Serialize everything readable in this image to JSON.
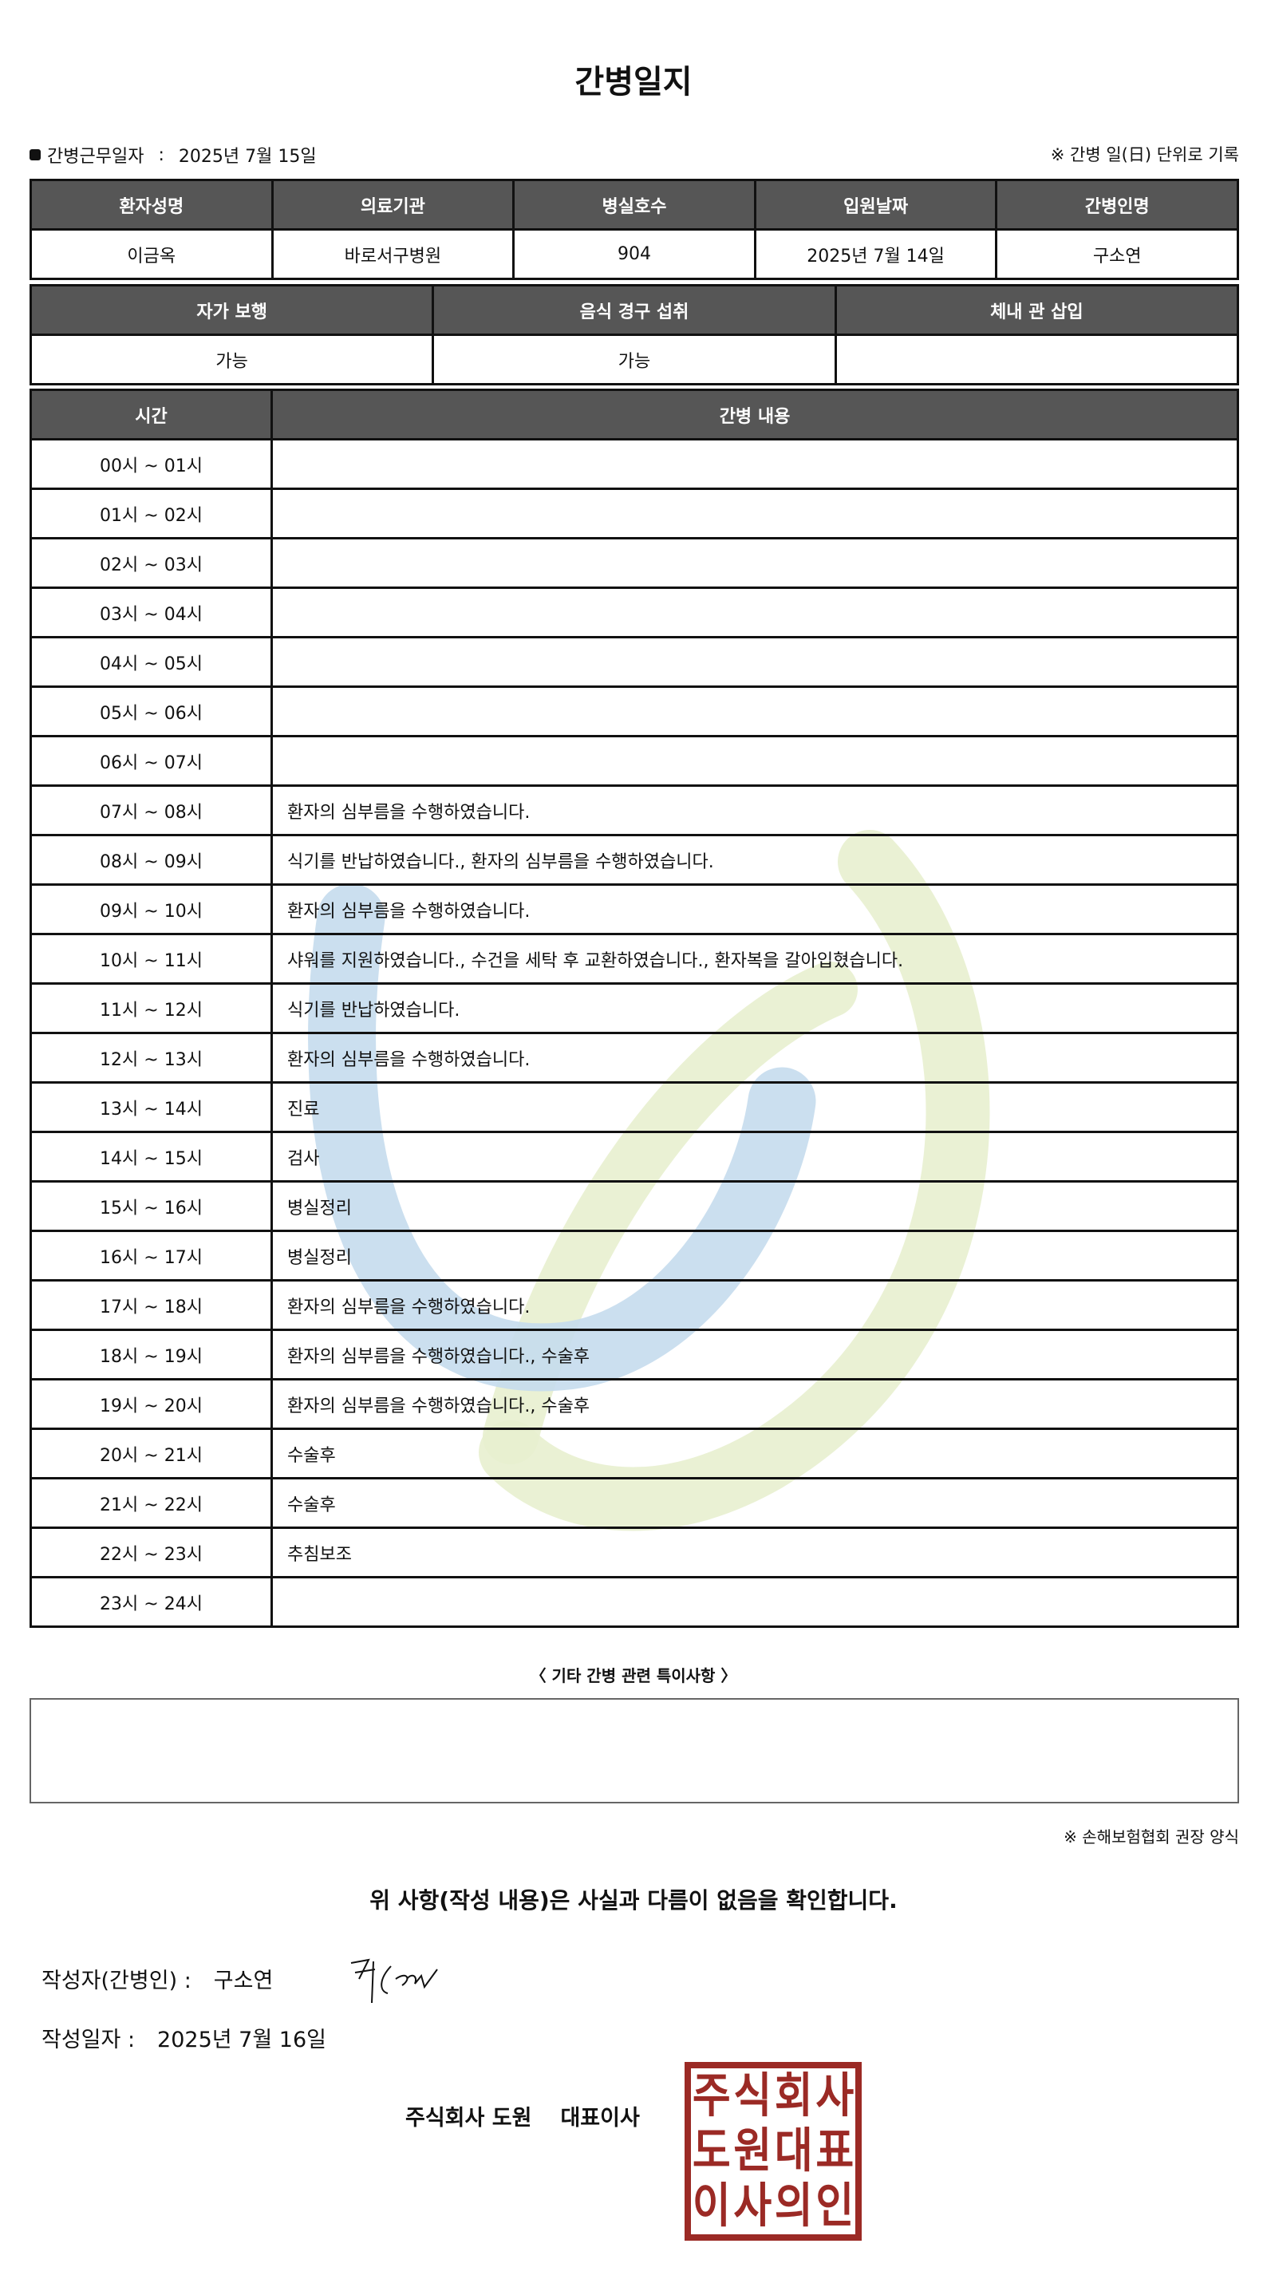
{
  "title": "간병일지",
  "work_date": {
    "label": "간병근무일자",
    "separator": ":",
    "value": "2025년 7월 15일"
  },
  "unit_note": "※ 간병 일(日) 단위로 기록",
  "info_table": {
    "headers": [
      "환자성명",
      "의료기관",
      "병실호수",
      "입원날짜",
      "간병인명"
    ],
    "values": [
      "이금옥",
      "바로서구병원",
      "904",
      "2025년 7월 14일",
      "구소연"
    ]
  },
  "status_table": {
    "headers": [
      "자가 보행",
      "음식 경구 섭취",
      "체내 관 삽입"
    ],
    "values": [
      "가능",
      "가능",
      ""
    ]
  },
  "log_table": {
    "headers": [
      "시간",
      "간병 내용"
    ],
    "rows": [
      {
        "time": "00시 ~ 01시",
        "content": ""
      },
      {
        "time": "01시 ~ 02시",
        "content": ""
      },
      {
        "time": "02시 ~ 03시",
        "content": ""
      },
      {
        "time": "03시 ~ 04시",
        "content": ""
      },
      {
        "time": "04시 ~ 05시",
        "content": ""
      },
      {
        "time": "05시 ~ 06시",
        "content": ""
      },
      {
        "time": "06시 ~ 07시",
        "content": ""
      },
      {
        "time": "07시 ~ 08시",
        "content": "환자의 심부름을 수행하였습니다."
      },
      {
        "time": "08시 ~ 09시",
        "content": "식기를 반납하였습니다., 환자의 심부름을 수행하였습니다."
      },
      {
        "time": "09시 ~ 10시",
        "content": "환자의 심부름을 수행하였습니다."
      },
      {
        "time": "10시 ~ 11시",
        "content": "샤워를 지원하였습니다., 수건을 세탁 후 교환하였습니다., 환자복을 갈아입혔습니다."
      },
      {
        "time": "11시 ~ 12시",
        "content": "식기를 반납하였습니다."
      },
      {
        "time": "12시 ~ 13시",
        "content": "환자의 심부름을 수행하였습니다."
      },
      {
        "time": "13시 ~ 14시",
        "content": "진료"
      },
      {
        "time": "14시 ~ 15시",
        "content": "검사"
      },
      {
        "time": "15시 ~ 16시",
        "content": "병실정리"
      },
      {
        "time": "16시 ~ 17시",
        "content": "병실정리"
      },
      {
        "time": "17시 ~ 18시",
        "content": "환자의 심부름을 수행하였습니다."
      },
      {
        "time": "18시 ~ 19시",
        "content": "환자의 심부름을 수행하였습니다., 수술후"
      },
      {
        "time": "19시 ~ 20시",
        "content": "환자의 심부름을 수행하였습니다., 수술후"
      },
      {
        "time": "20시 ~ 21시",
        "content": "수술후"
      },
      {
        "time": "21시 ~ 22시",
        "content": "수술후"
      },
      {
        "time": "22시 ~ 23시",
        "content": "추침보조"
      },
      {
        "time": "23시 ~ 24시",
        "content": ""
      }
    ]
  },
  "special_notes": {
    "label": "〈 기타 간병 관련 특이사항 〉",
    "value": ""
  },
  "form_note": "※ 손해보험협회 권장 양식",
  "confirmation": "위 사항(작성 내용)은 사실과 다름이 없음을 확인합니다.",
  "writer": {
    "label": "작성자(간병인) :",
    "value": "구소연"
  },
  "written_date": {
    "label": "작성일자 :",
    "value": "2025년 7월 16일"
  },
  "company": {
    "name": "주식회사 도원",
    "title": "대표이사"
  },
  "stamp": {
    "text": [
      "주",
      "식",
      "회",
      "사",
      "도",
      "원",
      "대",
      "표",
      "이",
      "사",
      "의",
      "인"
    ],
    "color": "#9b2a25"
  },
  "colors": {
    "header_bg": "#565656",
    "watermark_blue": "#c5dced",
    "watermark_green": "#e8f0cf"
  }
}
